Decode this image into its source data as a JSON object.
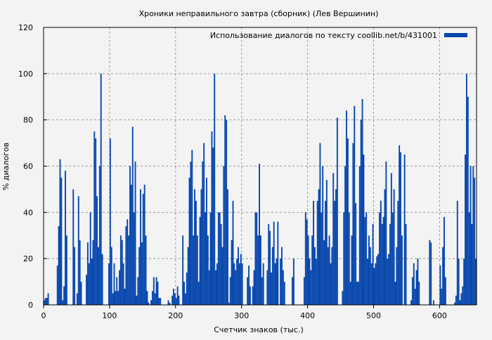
{
  "chart_data": {
    "type": "bar",
    "title": "Хроники неправильного завтра (сборник) (Лев Вершинин)",
    "xlabel": "Счетчик знаков (тыс.)",
    "ylabel": "% диалогов",
    "xlim": [
      0,
      656
    ],
    "ylim": [
      0,
      120
    ],
    "xticks": [
      0,
      100,
      200,
      300,
      400,
      500,
      600
    ],
    "yticks": [
      0,
      20,
      40,
      60,
      80,
      100,
      120
    ],
    "grid": true,
    "legend_position": "top-right",
    "series": [
      {
        "name": "Использование диалогов по тексту  coollib.net/b/431001",
        "color": "#0646ad",
        "x": [
          0,
          2,
          4,
          6,
          8,
          10,
          12,
          14,
          16,
          18,
          20,
          22,
          24,
          26,
          28,
          30,
          32,
          34,
          36,
          38,
          40,
          42,
          44,
          46,
          48,
          50,
          52,
          54,
          56,
          58,
          60,
          62,
          64,
          66,
          68,
          70,
          72,
          74,
          76,
          78,
          80,
          82,
          84,
          86,
          88,
          90,
          92,
          94,
          96,
          98,
          100,
          102,
          104,
          106,
          108,
          110,
          112,
          114,
          116,
          118,
          120,
          122,
          124,
          126,
          128,
          130,
          132,
          134,
          136,
          138,
          140,
          142,
          144,
          146,
          148,
          150,
          152,
          154,
          156,
          158,
          160,
          162,
          164,
          166,
          168,
          170,
          172,
          174,
          176,
          178,
          180,
          182,
          184,
          186,
          188,
          190,
          192,
          194,
          196,
          198,
          200,
          202,
          204,
          206,
          208,
          210,
          212,
          214,
          216,
          218,
          220,
          222,
          224,
          226,
          228,
          230,
          232,
          234,
          236,
          238,
          240,
          242,
          244,
          246,
          248,
          250,
          252,
          254,
          256,
          258,
          260,
          262,
          264,
          266,
          268,
          270,
          272,
          274,
          276,
          278,
          280,
          282,
          284,
          286,
          288,
          290,
          292,
          294,
          296,
          298,
          300,
          302,
          304,
          306,
          308,
          310,
          312,
          314,
          316,
          318,
          320,
          322,
          324,
          326,
          328,
          330,
          332,
          334,
          336,
          338,
          340,
          342,
          344,
          346,
          348,
          350,
          352,
          354,
          356,
          358,
          360,
          362,
          364,
          366,
          368,
          370,
          372,
          374,
          376,
          378,
          380,
          382,
          384,
          386,
          388,
          390,
          392,
          394,
          396,
          398,
          400,
          402,
          404,
          406,
          408,
          410,
          412,
          414,
          416,
          418,
          420,
          422,
          424,
          426,
          428,
          430,
          432,
          434,
          436,
          438,
          440,
          442,
          444,
          446,
          448,
          450,
          452,
          454,
          456,
          458,
          460,
          462,
          464,
          466,
          468,
          470,
          472,
          474,
          476,
          478,
          480,
          482,
          484,
          486,
          488,
          490,
          492,
          494,
          496,
          498,
          500,
          502,
          504,
          506,
          508,
          510,
          512,
          514,
          516,
          518,
          520,
          522,
          524,
          526,
          528,
          530,
          532,
          534,
          536,
          538,
          540,
          542,
          544,
          546,
          548,
          550,
          552,
          554,
          556,
          558,
          560,
          562,
          564,
          566,
          568,
          570,
          572,
          574,
          576,
          578,
          580,
          582,
          584,
          586,
          588,
          590,
          592,
          594,
          596,
          598,
          600,
          602,
          604,
          606,
          608,
          610,
          612,
          614,
          616,
          618,
          620,
          622,
          624,
          626,
          628,
          630,
          632,
          634,
          636,
          638,
          640,
          642,
          644,
          646,
          648,
          650,
          652,
          654,
          656
        ],
        "values": [
          2,
          3,
          3,
          5,
          0,
          0,
          0,
          0,
          0,
          0,
          17,
          34,
          63,
          55,
          2,
          8,
          58,
          30,
          0,
          0,
          0,
          0,
          50,
          25,
          0,
          5,
          47,
          28,
          10,
          0,
          0,
          0,
          13,
          27,
          18,
          40,
          20,
          28,
          75,
          72,
          47,
          25,
          60,
          100,
          22,
          0,
          0,
          0,
          0,
          18,
          72,
          25,
          5,
          18,
          6,
          12,
          6,
          15,
          30,
          28,
          18,
          7,
          34,
          37,
          30,
          60,
          52,
          77,
          40,
          62,
          4,
          12,
          25,
          50,
          27,
          48,
          52,
          30,
          6,
          1,
          0,
          2,
          6,
          12,
          5,
          12,
          10,
          3,
          3,
          0,
          0,
          0,
          0,
          0,
          2,
          1,
          0,
          4,
          7,
          5,
          3,
          8,
          4,
          0,
          0,
          30,
          10,
          5,
          14,
          25,
          55,
          62,
          67,
          30,
          50,
          45,
          30,
          10,
          38,
          50,
          62,
          70,
          40,
          55,
          30,
          15,
          40,
          75,
          68,
          100,
          15,
          18,
          40,
          40,
          35,
          25,
          60,
          82,
          80,
          50,
          1,
          12,
          28,
          45,
          18,
          15,
          20,
          25,
          18,
          22,
          18,
          0,
          0,
          0,
          12,
          17,
          8,
          0,
          8,
          15,
          40,
          40,
          30,
          61,
          30,
          12,
          18,
          0,
          0,
          15,
          35,
          32,
          14,
          25,
          36,
          18,
          20,
          36,
          0,
          20,
          25,
          15,
          10,
          0,
          0,
          0,
          0,
          0,
          12,
          20,
          0,
          0,
          0,
          0,
          0,
          0,
          0,
          12,
          40,
          37,
          30,
          20,
          15,
          30,
          45,
          25,
          20,
          45,
          50,
          70,
          40,
          60,
          28,
          45,
          54,
          25,
          30,
          18,
          25,
          57,
          45,
          50,
          81,
          0,
          0,
          0,
          6,
          40,
          60,
          84,
          72,
          40,
          10,
          30,
          70,
          86,
          44,
          10,
          10,
          60,
          80,
          89,
          65,
          38,
          40,
          20,
          30,
          25,
          18,
          35,
          16,
          18,
          21,
          22,
          40,
          45,
          35,
          38,
          50,
          62,
          20,
          22,
          35,
          57,
          40,
          50,
          10,
          25,
          45,
          69,
          66,
          30,
          0,
          65,
          35,
          0,
          0,
          0,
          2,
          12,
          18,
          7,
          15,
          20,
          10,
          0,
          0,
          0,
          0,
          0,
          0,
          0,
          28,
          27,
          0,
          2,
          0,
          0,
          0,
          0,
          17,
          7,
          25,
          38,
          12,
          0,
          0,
          0,
          0,
          0,
          0,
          1,
          4,
          45,
          20,
          2,
          5,
          8,
          20,
          65,
          100,
          90,
          40,
          60,
          35,
          60,
          55,
          20,
          0
        ]
      }
    ]
  }
}
